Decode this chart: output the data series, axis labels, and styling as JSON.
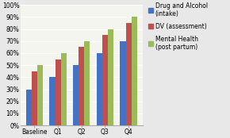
{
  "categories": [
    "Baseline",
    "Q1",
    "Q2",
    "Q3",
    "Q4"
  ],
  "series_data": [
    [
      30,
      40,
      50,
      60,
      70
    ],
    [
      45,
      55,
      65,
      75,
      85
    ],
    [
      50,
      60,
      70,
      80,
      90
    ]
  ],
  "colors": [
    "#4472c4",
    "#c0504d",
    "#9bbb59"
  ],
  "legend_labels": [
    "Drug and Alcohol\n(intake)",
    "DV (assessment)",
    "Mental Health\n(post partum)"
  ],
  "ylim": [
    0,
    100
  ],
  "yticks": [
    0,
    10,
    20,
    30,
    40,
    50,
    60,
    70,
    80,
    90,
    100
  ],
  "ytick_labels": [
    "0%",
    "10%",
    "20%",
    "30%",
    "40%",
    "50%",
    "60%",
    "70%",
    "80%",
    "90%",
    "100%"
  ],
  "background_color": "#e8e8e8",
  "plot_bg_color": "#f5f5f0",
  "bar_width": 0.24,
  "tick_fontsize": 5.5,
  "legend_fontsize": 5.5
}
